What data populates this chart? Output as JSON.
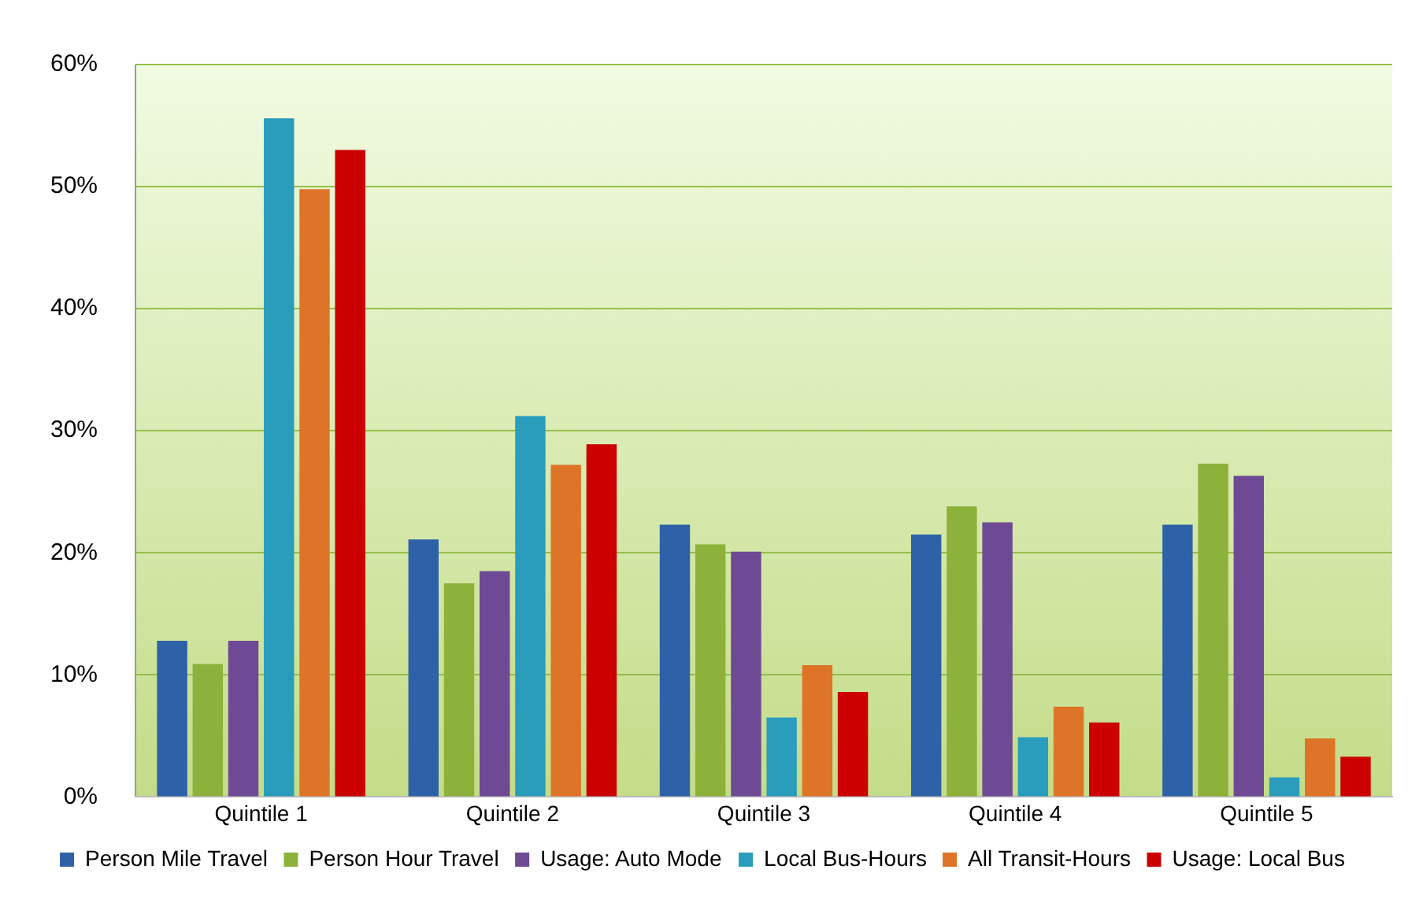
{
  "chart_data": {
    "type": "bar",
    "categories": [
      "Quintile 1",
      "Quintile 2",
      "Quintile 3",
      "Quintile 4",
      "Quintile 5"
    ],
    "series": [
      {
        "name": "Person Mile Travel",
        "color": "#2e62a8",
        "values": [
          12.8,
          21.1,
          22.3,
          21.5,
          22.3
        ]
      },
      {
        "name": "Person Hour Travel",
        "color": "#8cb23c",
        "values": [
          10.9,
          17.5,
          20.7,
          23.8,
          27.3
        ]
      },
      {
        "name": "Usage: Auto Mode",
        "color": "#6e4a94",
        "values": [
          12.8,
          18.5,
          20.1,
          22.5,
          26.3
        ]
      },
      {
        "name": "Local Bus-Hours",
        "color": "#2a9cbc",
        "values": [
          55.6,
          31.2,
          6.5,
          4.9,
          1.6
        ]
      },
      {
        "name": "All Transit-Hours",
        "color": "#de7428",
        "values": [
          49.8,
          27.2,
          10.8,
          7.4,
          4.8
        ]
      },
      {
        "name": "Usage: Local Bus",
        "color": "#cc0000",
        "values": [
          53.0,
          28.9,
          8.6,
          6.1,
          3.3
        ]
      }
    ],
    "ylim": [
      0,
      60
    ],
    "yticks": [
      {
        "value": 0,
        "label": "0%"
      },
      {
        "value": 10,
        "label": "10%"
      },
      {
        "value": 20,
        "label": "20%"
      },
      {
        "value": 30,
        "label": "30%"
      },
      {
        "value": 40,
        "label": "40%"
      },
      {
        "value": 50,
        "label": "50%"
      },
      {
        "value": 60,
        "label": "60%"
      }
    ],
    "grid": "y",
    "legend": "bottom"
  }
}
